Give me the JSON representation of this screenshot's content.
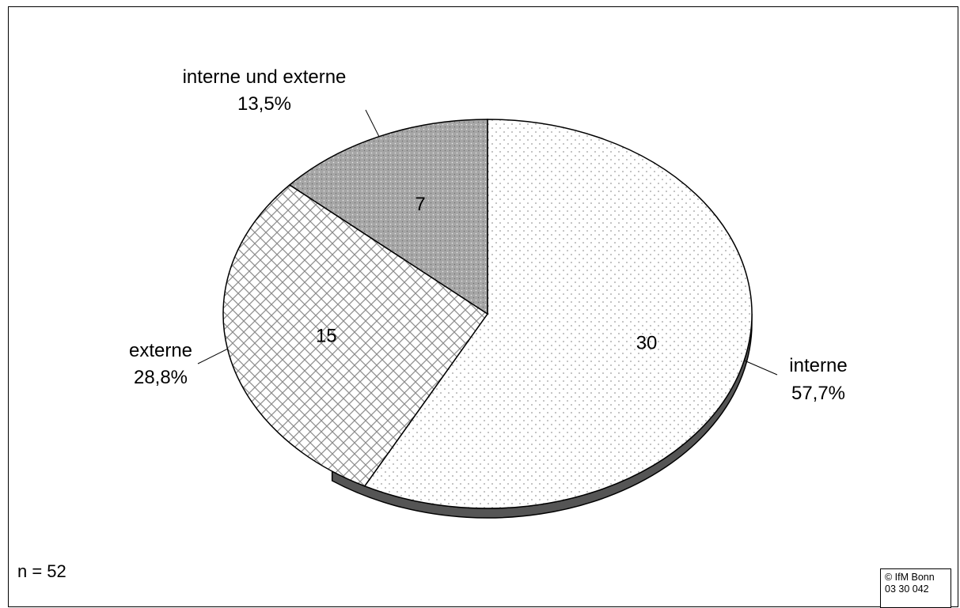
{
  "chart_data": {
    "type": "pie",
    "total_label": "n = 52",
    "slices": [
      {
        "value": 30,
        "label": "interne",
        "percent_label": "57,7%",
        "fill": "#ffffff",
        "dot": "#9a9a9a"
      },
      {
        "value": 15,
        "label": "externe",
        "percent_label": "28,8%",
        "fill": "#ffffff",
        "dot": "#8c8c8c"
      },
      {
        "value": 7,
        "label": "interne und externe",
        "percent_label": "13,5%",
        "fill": "#a6a6a6",
        "dot": "#e8e8e8"
      }
    ]
  },
  "footer": {
    "copyright_line1": "© IfM Bonn",
    "copyright_line2": "03 30 042"
  }
}
